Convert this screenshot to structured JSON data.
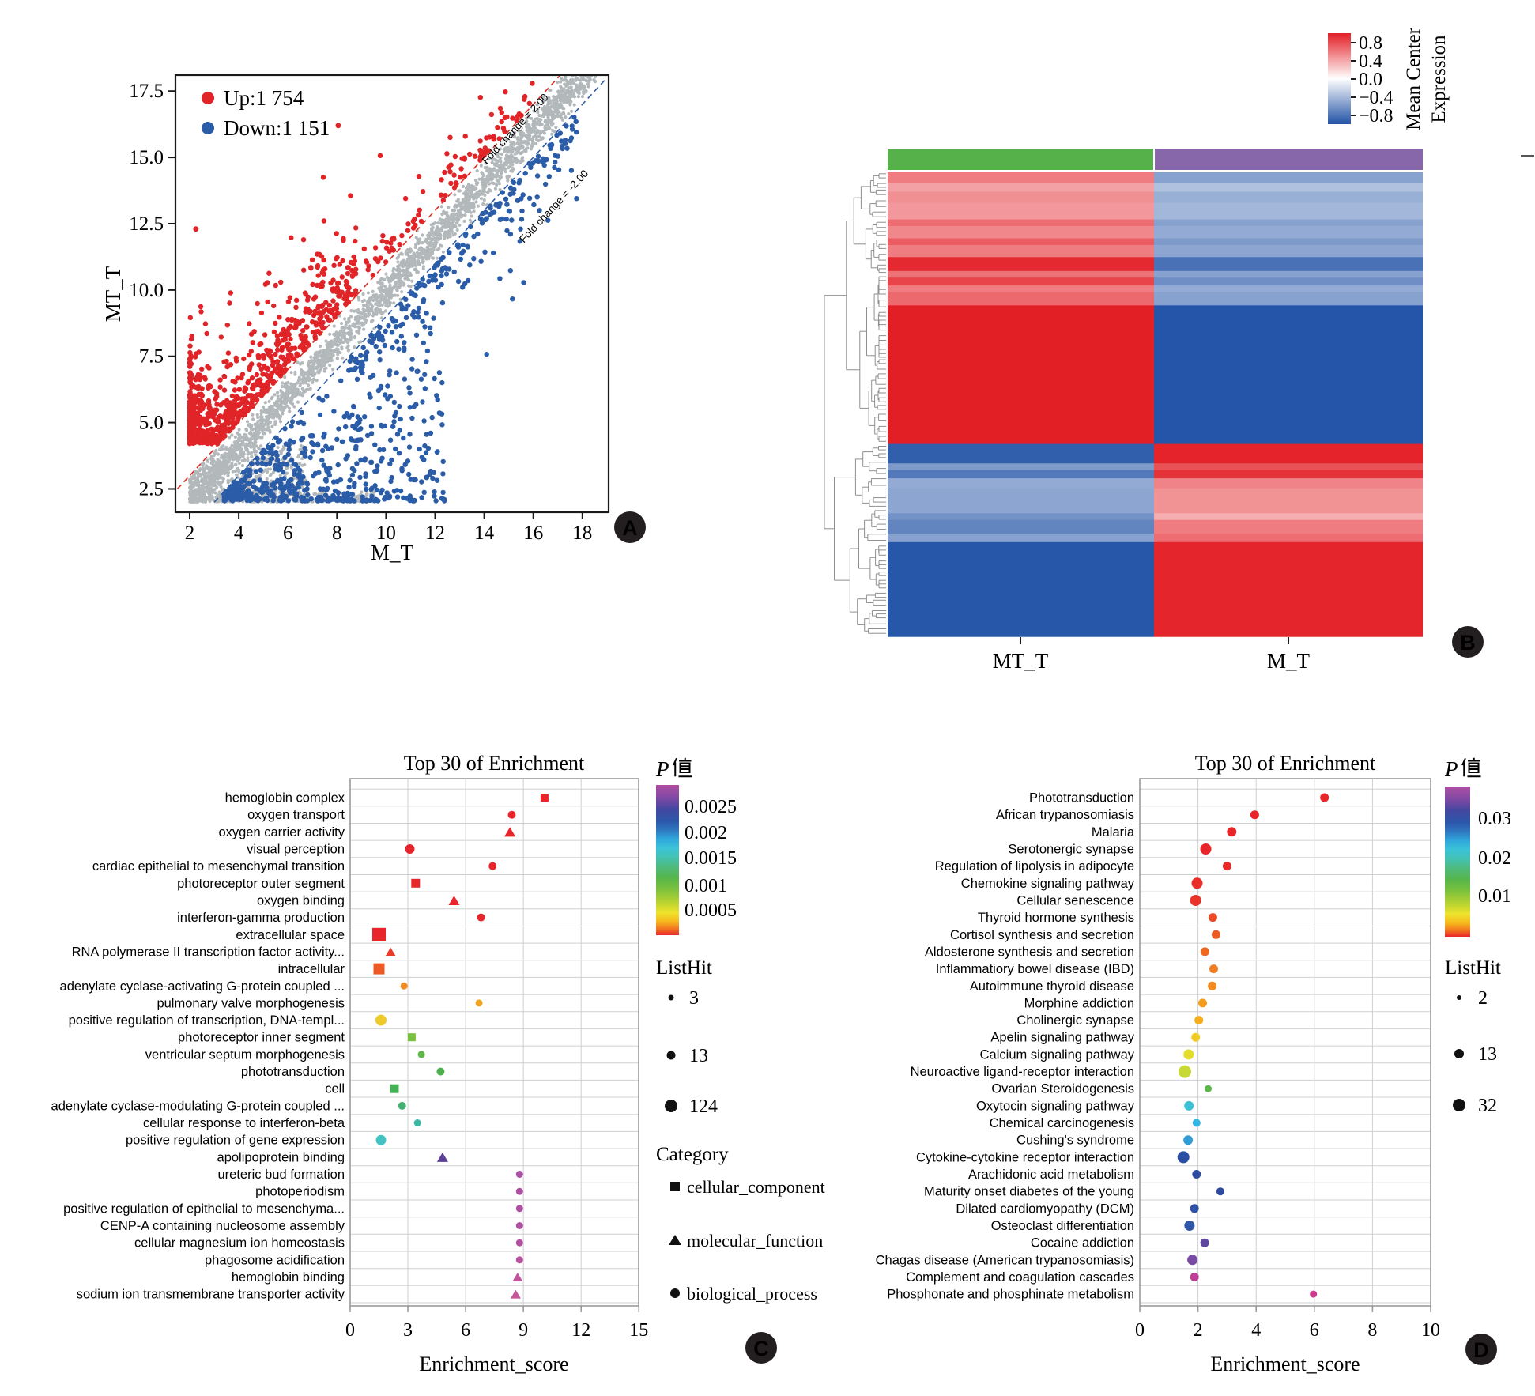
{
  "chart_data": [
    {
      "panel": "A",
      "type": "scatter",
      "xlabel": "M_T",
      "ylabel": "MT_T",
      "xlim": [
        1.4,
        19.1
      ],
      "ylim": [
        1.6,
        18.1
      ],
      "xticks": [
        "2",
        "4",
        "6",
        "8",
        "10",
        "12",
        "14",
        "16",
        "18"
      ],
      "yticks": [
        "2.5",
        "5.0",
        "7.5",
        "10.0",
        "12.5",
        "15.0",
        "17.5"
      ],
      "legend": [
        {
          "label": "Up:1 754",
          "count": 1754,
          "color": "#e02427"
        },
        {
          "label": "Down:1 151",
          "count": 1151,
          "color": "#2b5ca8"
        }
      ],
      "reference_lines": [
        {
          "label": "Fold change = 2.00",
          "offset": 1,
          "color": "#d93025"
        },
        {
          "label": "Fold change = -2.00",
          "offset": -1,
          "color": "#2b5ca8"
        }
      ],
      "neutral_color": "#b3b9bb",
      "pattern": {
        "diagonal_band": "dense grey points along y = x, halfwidth 1",
        "up_region": "red points above y = x + 1, concentrated at low M_T with floor y = 4.2",
        "down_region": "blue points below y = x - 1, floor y = 2"
      }
    },
    {
      "panel": "B",
      "type": "heatmap",
      "columns": [
        "MT_T",
        "M_T"
      ],
      "column_bar_colors": [
        "#56b14a",
        "#8766a9"
      ],
      "colorbar": {
        "title": "Mean Center Expression",
        "title_lines": [
          "Mean Center",
          "Expression"
        ],
        "ticks": [
          "0.8",
          "0.4",
          "0.0",
          "−0.4",
          "−0.8"
        ],
        "high_color": "#e31f26",
        "mid_color": "#ffffff",
        "low_color": "#2152a6"
      },
      "rows": [
        [
          2,
          0.55,
          -0.5
        ],
        [
          1.5,
          0.38,
          -0.32
        ],
        [
          2,
          0.46,
          -0.42
        ],
        [
          3,
          0.42,
          -0.38
        ],
        [
          1.2,
          0.62,
          -0.5
        ],
        [
          2.2,
          0.5,
          -0.45
        ],
        [
          1.2,
          0.7,
          -0.55
        ],
        [
          2.2,
          0.55,
          -0.48
        ],
        [
          2.5,
          0.95,
          -0.8
        ],
        [
          1.2,
          0.6,
          -0.5
        ],
        [
          1.4,
          0.82,
          -0.62
        ],
        [
          1.2,
          0.55,
          -0.45
        ],
        [
          2.4,
          0.64,
          -0.5
        ],
        [
          25,
          1.0,
          -0.98
        ],
        [
          3.5,
          -0.92,
          0.98
        ],
        [
          1.2,
          -0.55,
          0.75
        ],
        [
          1.5,
          -0.75,
          0.9
        ],
        [
          1.8,
          -0.45,
          0.52
        ],
        [
          4.5,
          -0.48,
          0.45
        ],
        [
          1.2,
          -0.6,
          0.32
        ],
        [
          2.5,
          -0.68,
          0.55
        ],
        [
          1.5,
          -0.5,
          0.62
        ],
        [
          17,
          -0.97,
          0.97
        ]
      ]
    },
    {
      "panel": "C",
      "type": "dot",
      "title": "Top 30 of Enrichment",
      "xlabel": "Enrichment_score",
      "xlim": [
        0,
        15
      ],
      "xticks": [
        "0",
        "3",
        "6",
        "9",
        "12",
        "15"
      ],
      "pvalue_legend": {
        "title": "P值",
        "latin": "P",
        "ticks": [
          "0.0025",
          "0.002",
          "0.0015",
          "0.001",
          "0.0005"
        ]
      },
      "size_legend": {
        "title": "ListHit",
        "items": [
          {
            "value": "3",
            "d": 7
          },
          {
            "value": "13",
            "d": 11
          },
          {
            "value": "124",
            "d": 16
          }
        ]
      },
      "category_legend": {
        "title": "Category",
        "items": [
          {
            "shape": "square",
            "label": "cellular_component"
          },
          {
            "shape": "triangle",
            "label": "molecular_function"
          },
          {
            "shape": "circle",
            "label": "biological_process"
          }
        ]
      },
      "items": [
        {
          "label": "hemoglobin complex",
          "score": 10.1,
          "shape": "square",
          "d": 10,
          "color": "#e8252b"
        },
        {
          "label": "oxygen transport",
          "score": 8.4,
          "shape": "circle",
          "d": 10,
          "color": "#e8252b"
        },
        {
          "label": "oxygen carrier activity",
          "score": 8.3,
          "shape": "triangle",
          "d": 11,
          "color": "#e8252b"
        },
        {
          "label": "visual perception",
          "score": 3.1,
          "shape": "circle",
          "d": 12,
          "color": "#e8252b"
        },
        {
          "label": "cardiac epithelial to mesenchymal transition",
          "score": 7.4,
          "shape": "circle",
          "d": 10,
          "color": "#e8252b"
        },
        {
          "label": "photoreceptor outer segment",
          "score": 3.4,
          "shape": "square",
          "d": 11,
          "color": "#e8252b"
        },
        {
          "label": "oxygen binding",
          "score": 5.4,
          "shape": "triangle",
          "d": 11,
          "color": "#e8252b"
        },
        {
          "label": "interferon-gamma production",
          "score": 6.8,
          "shape": "circle",
          "d": 10,
          "color": "#e8252b"
        },
        {
          "label": "extracellular space",
          "score": 1.5,
          "shape": "square",
          "d": 17,
          "color": "#e8252b"
        },
        {
          "label": "RNA polymerase II transcription factor activity...",
          "score": 2.1,
          "shape": "triangle",
          "d": 10,
          "color": "#ea3b28"
        },
        {
          "label": "intracellular",
          "score": 1.5,
          "shape": "square",
          "d": 14,
          "color": "#ee5a26"
        },
        {
          "label": "adenylate cyclase-activating G-protein coupled ...",
          "score": 2.8,
          "shape": "circle",
          "d": 9,
          "color": "#f28c22"
        },
        {
          "label": "pulmonary valve morphogenesis",
          "score": 6.7,
          "shape": "circle",
          "d": 9,
          "color": "#f2a61f"
        },
        {
          "label": "positive regulation of transcription, DNA-templ...",
          "score": 1.6,
          "shape": "circle",
          "d": 14,
          "color": "#eecb28"
        },
        {
          "label": "photoreceptor inner segment",
          "score": 3.2,
          "shape": "square",
          "d": 10,
          "color": "#79c143"
        },
        {
          "label": "ventricular septum morphogenesis",
          "score": 3.7,
          "shape": "circle",
          "d": 9,
          "color": "#5eb647"
        },
        {
          "label": "phototransduction",
          "score": 4.7,
          "shape": "circle",
          "d": 10,
          "color": "#4eb04c"
        },
        {
          "label": "cell",
          "score": 2.3,
          "shape": "square",
          "d": 11,
          "color": "#45b054"
        },
        {
          "label": "adenylate cyclase-modulating G-protein coupled ...",
          "score": 2.7,
          "shape": "circle",
          "d": 10,
          "color": "#43b273"
        },
        {
          "label": "cellular response to interferon-beta",
          "score": 3.5,
          "shape": "circle",
          "d": 9,
          "color": "#3cb9a5"
        },
        {
          "label": "positive regulation of gene expression",
          "score": 1.6,
          "shape": "circle",
          "d": 13,
          "color": "#43c2c4"
        },
        {
          "label": "apolipoprotein binding",
          "score": 4.8,
          "shape": "triangle",
          "d": 11,
          "color": "#5a3f98"
        },
        {
          "label": "ureteric bud formation",
          "score": 8.8,
          "shape": "circle",
          "d": 9,
          "color": "#a94fa4"
        },
        {
          "label": "photoperiodism",
          "score": 8.8,
          "shape": "circle",
          "d": 9,
          "color": "#ad4fa3"
        },
        {
          "label": "positive regulation of epithelial to mesenchyma...",
          "score": 8.8,
          "shape": "circle",
          "d": 9,
          "color": "#b050a2"
        },
        {
          "label": "CENP-A containing nucleosome assembly",
          "score": 8.8,
          "shape": "circle",
          "d": 9,
          "color": "#b050a2"
        },
        {
          "label": "cellular magnesium ion homeostasis",
          "score": 8.8,
          "shape": "circle",
          "d": 9,
          "color": "#b350a1"
        },
        {
          "label": "phagosome acidification",
          "score": 8.8,
          "shape": "circle",
          "d": 9,
          "color": "#b8519f"
        },
        {
          "label": "hemoglobin binding",
          "score": 8.7,
          "shape": "triangle",
          "d": 10,
          "color": "#c2549c"
        },
        {
          "label": "sodium ion transmembrane transporter activity",
          "score": 8.6,
          "shape": "triangle",
          "d": 10,
          "color": "#c65599"
        }
      ]
    },
    {
      "panel": "D",
      "type": "dot",
      "title": "Top 30 of Enrichment",
      "xlabel": "Enrichment_score",
      "xlim": [
        0,
        10
      ],
      "xticks": [
        "0",
        "2",
        "4",
        "6",
        "8",
        "10"
      ],
      "pvalue_legend": {
        "title": "P值",
        "latin": "P",
        "ticks": [
          "0.03",
          "0.02",
          "0.01"
        ]
      },
      "size_legend": {
        "title": "ListHit",
        "items": [
          {
            "value": "2",
            "d": 6
          },
          {
            "value": "13",
            "d": 12
          },
          {
            "value": "32",
            "d": 16
          }
        ]
      },
      "items": [
        {
          "label": "Phototransduction",
          "score": 6.35,
          "shape": "circle",
          "d": 11,
          "color": "#e8252b"
        },
        {
          "label": "African trypanosomiasis",
          "score": 3.95,
          "shape": "circle",
          "d": 11,
          "color": "#e8252b"
        },
        {
          "label": "Malaria",
          "score": 3.16,
          "shape": "circle",
          "d": 12,
          "color": "#e8252b"
        },
        {
          "label": "Serotonergic synapse",
          "score": 2.27,
          "shape": "circle",
          "d": 14,
          "color": "#e8252b"
        },
        {
          "label": "Regulation of lipolysis in adipocyte",
          "score": 3.0,
          "shape": "circle",
          "d": 11,
          "color": "#e8292a"
        },
        {
          "label": "Chemokine signaling pathway",
          "score": 1.97,
          "shape": "circle",
          "d": 14,
          "color": "#e82f29"
        },
        {
          "label": "Cellular senescence",
          "score": 1.92,
          "shape": "circle",
          "d": 14,
          "color": "#e93529"
        },
        {
          "label": "Thyroid hormone synthesis",
          "score": 2.51,
          "shape": "circle",
          "d": 11,
          "color": "#ea4b27"
        },
        {
          "label": "Cortisol synthesis and secretion",
          "score": 2.62,
          "shape": "circle",
          "d": 11,
          "color": "#ec5a25"
        },
        {
          "label": "Aldosterone synthesis and secretion",
          "score": 2.24,
          "shape": "circle",
          "d": 11,
          "color": "#ee6a23"
        },
        {
          "label": "Inflammatiory bowel disease (IBD)",
          "score": 2.54,
          "shape": "circle",
          "d": 11,
          "color": "#f07d21"
        },
        {
          "label": "Autoimmune thyroid disease",
          "score": 2.49,
          "shape": "circle",
          "d": 11,
          "color": "#f28c20"
        },
        {
          "label": "Morphine addiction",
          "score": 2.16,
          "shape": "circle",
          "d": 11,
          "color": "#f49c1e"
        },
        {
          "label": "Cholinergic synapse",
          "score": 2.03,
          "shape": "circle",
          "d": 11,
          "color": "#f6ad1c"
        },
        {
          "label": "Apelin signaling pathway",
          "score": 1.92,
          "shape": "circle",
          "d": 11,
          "color": "#f2ca24"
        },
        {
          "label": "Calcium signaling pathway",
          "score": 1.68,
          "shape": "circle",
          "d": 13,
          "color": "#e4dc2b"
        },
        {
          "label": "Neuroactive ligand-receptor interaction",
          "score": 1.55,
          "shape": "circle",
          "d": 16,
          "color": "#c6d934"
        },
        {
          "label": "Ovarian Steroidogenesis",
          "score": 2.35,
          "shape": "circle",
          "d": 9,
          "color": "#5bb747"
        },
        {
          "label": "Oxytocin signaling pathway",
          "score": 1.69,
          "shape": "circle",
          "d": 12,
          "color": "#3ec0d8"
        },
        {
          "label": "Chemical carcinogenesis",
          "score": 1.95,
          "shape": "circle",
          "d": 10,
          "color": "#30b6e4"
        },
        {
          "label": "Cushing's syndrome",
          "score": 1.66,
          "shape": "circle",
          "d": 12,
          "color": "#2f9ed8"
        },
        {
          "label": "Cytokine-cytokine receptor interaction",
          "score": 1.5,
          "shape": "circle",
          "d": 15,
          "color": "#2b4fa2"
        },
        {
          "label": "Arachidonic acid metabolism",
          "score": 1.95,
          "shape": "circle",
          "d": 11,
          "color": "#2b4ba0"
        },
        {
          "label": "Maturity onset diabetes of the young",
          "score": 2.77,
          "shape": "circle",
          "d": 10,
          "color": "#2d4a9e"
        },
        {
          "label": "Dilated cardiomyopathy (DCM)",
          "score": 1.88,
          "shape": "circle",
          "d": 11,
          "color": "#2f52a4"
        },
        {
          "label": "Osteoclast differentiation",
          "score": 1.71,
          "shape": "circle",
          "d": 13,
          "color": "#3056a7"
        },
        {
          "label": "Cocaine addiction",
          "score": 2.23,
          "shape": "circle",
          "d": 11,
          "color": "#5f47a0"
        },
        {
          "label": "Chagas disease (American trypanosomiasis)",
          "score": 1.81,
          "shape": "circle",
          "d": 13,
          "color": "#7a4ba3"
        },
        {
          "label": "Complement and coagulation cascades",
          "score": 1.88,
          "shape": "circle",
          "d": 11,
          "color": "#bb3f94"
        },
        {
          "label": "Phosphonate and phosphinate metabolism",
          "score": 5.97,
          "shape": "circle",
          "d": 9,
          "color": "#cf3a8e"
        }
      ]
    }
  ]
}
